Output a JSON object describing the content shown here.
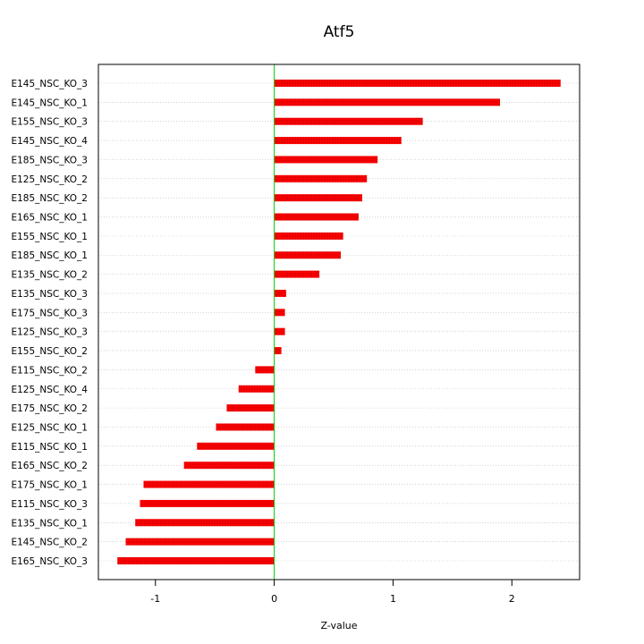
{
  "chart_data": {
    "type": "bar",
    "orientation": "horizontal",
    "title": "Atf5",
    "xlabel": "Z-value",
    "ylabel": "",
    "xlim": [
      -1.48,
      2.57
    ],
    "xticks": [
      -1,
      0,
      1,
      2
    ],
    "grid": true,
    "reference_line": 0,
    "colors": {
      "bar": "#ff0000",
      "bar_hatch": "#cc0000",
      "zero_line": "#00cc00",
      "grid": "#bbbbbb",
      "axis": "#000000"
    },
    "categories": [
      "E145_NSC_KO_3",
      "E145_NSC_KO_1",
      "E155_NSC_KO_3",
      "E145_NSC_KO_4",
      "E185_NSC_KO_3",
      "E125_NSC_KO_2",
      "E185_NSC_KO_2",
      "E165_NSC_KO_1",
      "E155_NSC_KO_1",
      "E185_NSC_KO_1",
      "E135_NSC_KO_2",
      "E135_NSC_KO_3",
      "E175_NSC_KO_3",
      "E125_NSC_KO_3",
      "E155_NSC_KO_2",
      "E115_NSC_KO_2",
      "E125_NSC_KO_4",
      "E175_NSC_KO_2",
      "E125_NSC_KO_1",
      "E115_NSC_KO_1",
      "E165_NSC_KO_2",
      "E175_NSC_KO_1",
      "E115_NSC_KO_3",
      "E135_NSC_KO_1",
      "E145_NSC_KO_2",
      "E165_NSC_KO_3"
    ],
    "values": [
      2.41,
      1.9,
      1.25,
      1.07,
      0.87,
      0.78,
      0.74,
      0.71,
      0.58,
      0.56,
      0.38,
      0.1,
      0.09,
      0.09,
      0.06,
      -0.16,
      -0.3,
      -0.4,
      -0.49,
      -0.65,
      -0.76,
      -1.1,
      -1.13,
      -1.17,
      -1.25,
      -1.32
    ]
  }
}
